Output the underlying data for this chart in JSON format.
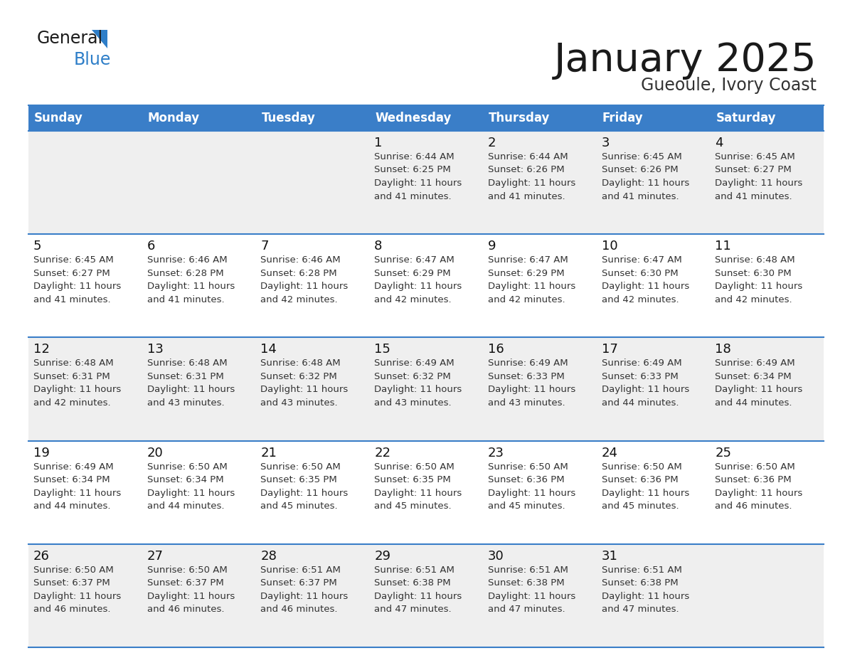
{
  "title": "January 2025",
  "subtitle": "Gueoule, Ivory Coast",
  "days_of_week": [
    "Sunday",
    "Monday",
    "Tuesday",
    "Wednesday",
    "Thursday",
    "Friday",
    "Saturday"
  ],
  "header_bg": "#3a7ec8",
  "header_text": "#ffffff",
  "row_bg_light": "#efefef",
  "row_bg_white": "#ffffff",
  "border_color": "#3a7ec8",
  "day_num_color": "#111111",
  "cell_text_color": "#333333",
  "title_color": "#1a1a1a",
  "subtitle_color": "#333333",
  "generalblue_black": "#1a1a1a",
  "generalblue_blue": "#2e7ec8",
  "calendar_data": [
    [
      {
        "day": null,
        "sunrise": null,
        "sunset": null,
        "daylight_hours": null,
        "daylight_minutes": null
      },
      {
        "day": null,
        "sunrise": null,
        "sunset": null,
        "daylight_hours": null,
        "daylight_minutes": null
      },
      {
        "day": null,
        "sunrise": null,
        "sunset": null,
        "daylight_hours": null,
        "daylight_minutes": null
      },
      {
        "day": 1,
        "sunrise": "6:44 AM",
        "sunset": "6:25 PM",
        "daylight_hours": 11,
        "daylight_minutes": 41
      },
      {
        "day": 2,
        "sunrise": "6:44 AM",
        "sunset": "6:26 PM",
        "daylight_hours": 11,
        "daylight_minutes": 41
      },
      {
        "day": 3,
        "sunrise": "6:45 AM",
        "sunset": "6:26 PM",
        "daylight_hours": 11,
        "daylight_minutes": 41
      },
      {
        "day": 4,
        "sunrise": "6:45 AM",
        "sunset": "6:27 PM",
        "daylight_hours": 11,
        "daylight_minutes": 41
      }
    ],
    [
      {
        "day": 5,
        "sunrise": "6:45 AM",
        "sunset": "6:27 PM",
        "daylight_hours": 11,
        "daylight_minutes": 41
      },
      {
        "day": 6,
        "sunrise": "6:46 AM",
        "sunset": "6:28 PM",
        "daylight_hours": 11,
        "daylight_minutes": 41
      },
      {
        "day": 7,
        "sunrise": "6:46 AM",
        "sunset": "6:28 PM",
        "daylight_hours": 11,
        "daylight_minutes": 42
      },
      {
        "day": 8,
        "sunrise": "6:47 AM",
        "sunset": "6:29 PM",
        "daylight_hours": 11,
        "daylight_minutes": 42
      },
      {
        "day": 9,
        "sunrise": "6:47 AM",
        "sunset": "6:29 PM",
        "daylight_hours": 11,
        "daylight_minutes": 42
      },
      {
        "day": 10,
        "sunrise": "6:47 AM",
        "sunset": "6:30 PM",
        "daylight_hours": 11,
        "daylight_minutes": 42
      },
      {
        "day": 11,
        "sunrise": "6:48 AM",
        "sunset": "6:30 PM",
        "daylight_hours": 11,
        "daylight_minutes": 42
      }
    ],
    [
      {
        "day": 12,
        "sunrise": "6:48 AM",
        "sunset": "6:31 PM",
        "daylight_hours": 11,
        "daylight_minutes": 42
      },
      {
        "day": 13,
        "sunrise": "6:48 AM",
        "sunset": "6:31 PM",
        "daylight_hours": 11,
        "daylight_minutes": 43
      },
      {
        "day": 14,
        "sunrise": "6:48 AM",
        "sunset": "6:32 PM",
        "daylight_hours": 11,
        "daylight_minutes": 43
      },
      {
        "day": 15,
        "sunrise": "6:49 AM",
        "sunset": "6:32 PM",
        "daylight_hours": 11,
        "daylight_minutes": 43
      },
      {
        "day": 16,
        "sunrise": "6:49 AM",
        "sunset": "6:33 PM",
        "daylight_hours": 11,
        "daylight_minutes": 43
      },
      {
        "day": 17,
        "sunrise": "6:49 AM",
        "sunset": "6:33 PM",
        "daylight_hours": 11,
        "daylight_minutes": 44
      },
      {
        "day": 18,
        "sunrise": "6:49 AM",
        "sunset": "6:34 PM",
        "daylight_hours": 11,
        "daylight_minutes": 44
      }
    ],
    [
      {
        "day": 19,
        "sunrise": "6:49 AM",
        "sunset": "6:34 PM",
        "daylight_hours": 11,
        "daylight_minutes": 44
      },
      {
        "day": 20,
        "sunrise": "6:50 AM",
        "sunset": "6:34 PM",
        "daylight_hours": 11,
        "daylight_minutes": 44
      },
      {
        "day": 21,
        "sunrise": "6:50 AM",
        "sunset": "6:35 PM",
        "daylight_hours": 11,
        "daylight_minutes": 45
      },
      {
        "day": 22,
        "sunrise": "6:50 AM",
        "sunset": "6:35 PM",
        "daylight_hours": 11,
        "daylight_minutes": 45
      },
      {
        "day": 23,
        "sunrise": "6:50 AM",
        "sunset": "6:36 PM",
        "daylight_hours": 11,
        "daylight_minutes": 45
      },
      {
        "day": 24,
        "sunrise": "6:50 AM",
        "sunset": "6:36 PM",
        "daylight_hours": 11,
        "daylight_minutes": 45
      },
      {
        "day": 25,
        "sunrise": "6:50 AM",
        "sunset": "6:36 PM",
        "daylight_hours": 11,
        "daylight_minutes": 46
      }
    ],
    [
      {
        "day": 26,
        "sunrise": "6:50 AM",
        "sunset": "6:37 PM",
        "daylight_hours": 11,
        "daylight_minutes": 46
      },
      {
        "day": 27,
        "sunrise": "6:50 AM",
        "sunset": "6:37 PM",
        "daylight_hours": 11,
        "daylight_minutes": 46
      },
      {
        "day": 28,
        "sunrise": "6:51 AM",
        "sunset": "6:37 PM",
        "daylight_hours": 11,
        "daylight_minutes": 46
      },
      {
        "day": 29,
        "sunrise": "6:51 AM",
        "sunset": "6:38 PM",
        "daylight_hours": 11,
        "daylight_minutes": 47
      },
      {
        "day": 30,
        "sunrise": "6:51 AM",
        "sunset": "6:38 PM",
        "daylight_hours": 11,
        "daylight_minutes": 47
      },
      {
        "day": 31,
        "sunrise": "6:51 AM",
        "sunset": "6:38 PM",
        "daylight_hours": 11,
        "daylight_minutes": 47
      },
      {
        "day": null,
        "sunrise": null,
        "sunset": null,
        "daylight_hours": null,
        "daylight_minutes": null
      }
    ]
  ],
  "row_backgrounds": [
    "#efefef",
    "#ffffff",
    "#efefef",
    "#ffffff",
    "#efefef"
  ]
}
